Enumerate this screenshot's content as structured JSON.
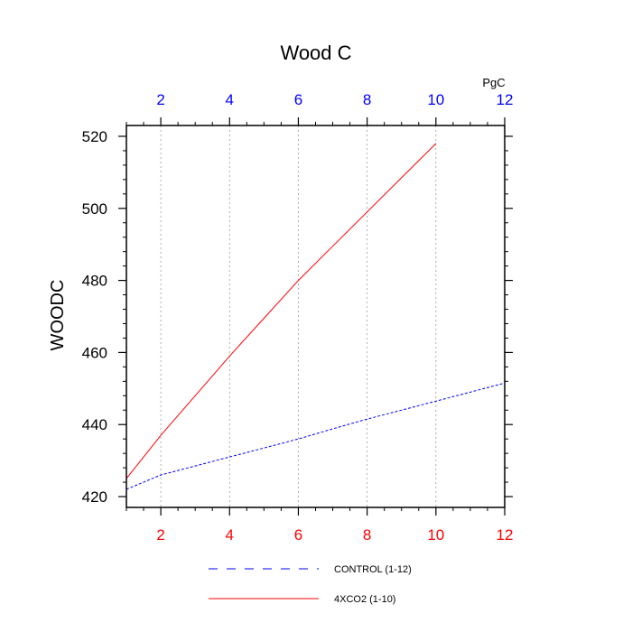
{
  "chart_data": {
    "type": "line",
    "title": "Wood C",
    "ylabel": "WOODC",
    "units_label": "PgC",
    "xlim": [
      1,
      12
    ],
    "ylim": [
      417,
      523
    ],
    "x_ticks": [
      2,
      4,
      6,
      8,
      10,
      12
    ],
    "y_ticks": [
      420,
      440,
      460,
      480,
      500,
      520
    ],
    "grid": "vertical dotted lines at major x ticks",
    "top_axis": {
      "ticks": [
        2,
        4,
        6,
        8,
        10,
        12
      ],
      "color": "#0000ff"
    },
    "bottom_axis": {
      "ticks": [
        2,
        4,
        6,
        8,
        10,
        12
      ],
      "color": "#ff0000"
    },
    "legend_position": "bottom-center",
    "series": [
      {
        "name": "CONTROL (1-12)",
        "color": "#0000ff",
        "style": "dashed",
        "x": [
          1,
          2,
          3,
          4,
          5,
          6,
          7,
          8,
          9,
          10,
          11,
          12
        ],
        "values": [
          422.0,
          426.0,
          428.5,
          431.0,
          433.5,
          436.0,
          438.8,
          441.5,
          444.0,
          446.5,
          449.0,
          451.5
        ]
      },
      {
        "name": "4XCO2 (1-10)",
        "color": "#ff0000",
        "style": "solid",
        "x": [
          1,
          2,
          3,
          4,
          5,
          6,
          7,
          8,
          9,
          10
        ],
        "values": [
          425.0,
          437.0,
          448.0,
          459.0,
          469.5,
          480.0,
          489.5,
          499.0,
          508.5,
          518.0
        ]
      }
    ]
  }
}
